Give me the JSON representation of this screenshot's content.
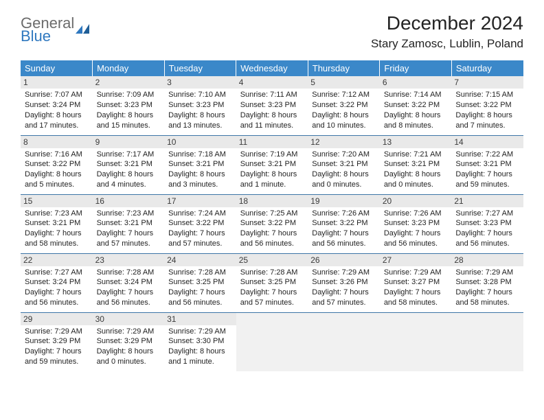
{
  "logo": {
    "word1": "General",
    "word2": "Blue",
    "color_gray": "#6b6b6b",
    "color_blue": "#2f78bf"
  },
  "title": "December 2024",
  "location": "Stary Zamosc, Lublin, Poland",
  "header_bg": "#3b88c9",
  "header_text": "#ffffff",
  "daynum_bg": "#e9e9e9",
  "cell_border": "#3b74a6",
  "empty_bg": "#f1f1f1",
  "body_fontsize": 11,
  "dayheaders": [
    "Sunday",
    "Monday",
    "Tuesday",
    "Wednesday",
    "Thursday",
    "Friday",
    "Saturday"
  ],
  "weeks": [
    [
      {
        "n": "1",
        "sr": "7:07 AM",
        "ss": "3:24 PM",
        "dl": "Daylight: 8 hours and 17 minutes."
      },
      {
        "n": "2",
        "sr": "7:09 AM",
        "ss": "3:23 PM",
        "dl": "Daylight: 8 hours and 15 minutes."
      },
      {
        "n": "3",
        "sr": "7:10 AM",
        "ss": "3:23 PM",
        "dl": "Daylight: 8 hours and 13 minutes."
      },
      {
        "n": "4",
        "sr": "7:11 AM",
        "ss": "3:23 PM",
        "dl": "Daylight: 8 hours and 11 minutes."
      },
      {
        "n": "5",
        "sr": "7:12 AM",
        "ss": "3:22 PM",
        "dl": "Daylight: 8 hours and 10 minutes."
      },
      {
        "n": "6",
        "sr": "7:14 AM",
        "ss": "3:22 PM",
        "dl": "Daylight: 8 hours and 8 minutes."
      },
      {
        "n": "7",
        "sr": "7:15 AM",
        "ss": "3:22 PM",
        "dl": "Daylight: 8 hours and 7 minutes."
      }
    ],
    [
      {
        "n": "8",
        "sr": "7:16 AM",
        "ss": "3:22 PM",
        "dl": "Daylight: 8 hours and 5 minutes."
      },
      {
        "n": "9",
        "sr": "7:17 AM",
        "ss": "3:21 PM",
        "dl": "Daylight: 8 hours and 4 minutes."
      },
      {
        "n": "10",
        "sr": "7:18 AM",
        "ss": "3:21 PM",
        "dl": "Daylight: 8 hours and 3 minutes."
      },
      {
        "n": "11",
        "sr": "7:19 AM",
        "ss": "3:21 PM",
        "dl": "Daylight: 8 hours and 1 minute."
      },
      {
        "n": "12",
        "sr": "7:20 AM",
        "ss": "3:21 PM",
        "dl": "Daylight: 8 hours and 0 minutes."
      },
      {
        "n": "13",
        "sr": "7:21 AM",
        "ss": "3:21 PM",
        "dl": "Daylight: 8 hours and 0 minutes."
      },
      {
        "n": "14",
        "sr": "7:22 AM",
        "ss": "3:21 PM",
        "dl": "Daylight: 7 hours and 59 minutes."
      }
    ],
    [
      {
        "n": "15",
        "sr": "7:23 AM",
        "ss": "3:21 PM",
        "dl": "Daylight: 7 hours and 58 minutes."
      },
      {
        "n": "16",
        "sr": "7:23 AM",
        "ss": "3:21 PM",
        "dl": "Daylight: 7 hours and 57 minutes."
      },
      {
        "n": "17",
        "sr": "7:24 AM",
        "ss": "3:22 PM",
        "dl": "Daylight: 7 hours and 57 minutes."
      },
      {
        "n": "18",
        "sr": "7:25 AM",
        "ss": "3:22 PM",
        "dl": "Daylight: 7 hours and 56 minutes."
      },
      {
        "n": "19",
        "sr": "7:26 AM",
        "ss": "3:22 PM",
        "dl": "Daylight: 7 hours and 56 minutes."
      },
      {
        "n": "20",
        "sr": "7:26 AM",
        "ss": "3:23 PM",
        "dl": "Daylight: 7 hours and 56 minutes."
      },
      {
        "n": "21",
        "sr": "7:27 AM",
        "ss": "3:23 PM",
        "dl": "Daylight: 7 hours and 56 minutes."
      }
    ],
    [
      {
        "n": "22",
        "sr": "7:27 AM",
        "ss": "3:24 PM",
        "dl": "Daylight: 7 hours and 56 minutes."
      },
      {
        "n": "23",
        "sr": "7:28 AM",
        "ss": "3:24 PM",
        "dl": "Daylight: 7 hours and 56 minutes."
      },
      {
        "n": "24",
        "sr": "7:28 AM",
        "ss": "3:25 PM",
        "dl": "Daylight: 7 hours and 56 minutes."
      },
      {
        "n": "25",
        "sr": "7:28 AM",
        "ss": "3:25 PM",
        "dl": "Daylight: 7 hours and 57 minutes."
      },
      {
        "n": "26",
        "sr": "7:29 AM",
        "ss": "3:26 PM",
        "dl": "Daylight: 7 hours and 57 minutes."
      },
      {
        "n": "27",
        "sr": "7:29 AM",
        "ss": "3:27 PM",
        "dl": "Daylight: 7 hours and 58 minutes."
      },
      {
        "n": "28",
        "sr": "7:29 AM",
        "ss": "3:28 PM",
        "dl": "Daylight: 7 hours and 58 minutes."
      }
    ],
    [
      {
        "n": "29",
        "sr": "7:29 AM",
        "ss": "3:29 PM",
        "dl": "Daylight: 7 hours and 59 minutes."
      },
      {
        "n": "30",
        "sr": "7:29 AM",
        "ss": "3:29 PM",
        "dl": "Daylight: 8 hours and 0 minutes."
      },
      {
        "n": "31",
        "sr": "7:29 AM",
        "ss": "3:30 PM",
        "dl": "Daylight: 8 hours and 1 minute."
      },
      null,
      null,
      null,
      null
    ]
  ]
}
